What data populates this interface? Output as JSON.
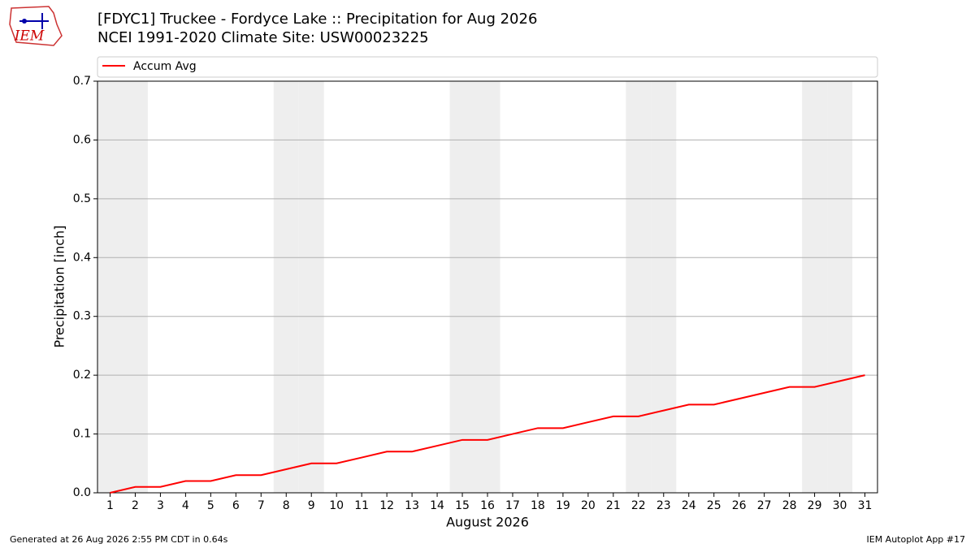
{
  "logo": "IEM",
  "footer": {
    "left": "Generated at 26 Aug 2026 2:55 PM CDT in 0.64s",
    "right": "IEM Autoplot App #17"
  },
  "chart_data": {
    "type": "line",
    "title": "[FDYC1] Truckee - Fordyce Lake :: Precipitation for Aug 2026",
    "subtitle": "NCEI 1991-2020 Climate Site: USW00023225",
    "x_label": "August 2026",
    "y_label": "Precipitation [inch]",
    "x": [
      1,
      2,
      3,
      4,
      5,
      6,
      7,
      8,
      9,
      10,
      11,
      12,
      13,
      14,
      15,
      16,
      17,
      18,
      19,
      20,
      21,
      22,
      23,
      24,
      25,
      26,
      27,
      28,
      29,
      30,
      31
    ],
    "series": [
      {
        "name": "Accum Avg",
        "color": "#ff0000",
        "values": [
          0,
          0.01,
          0.01,
          0.02,
          0.02,
          0.03,
          0.03,
          0.04,
          0.05,
          0.05,
          0.06,
          0.07,
          0.07,
          0.08,
          0.09,
          0.09,
          0.1,
          0.11,
          0.11,
          0.12,
          0.13,
          0.13,
          0.14,
          0.15,
          0.15,
          0.16,
          0.17,
          0.18,
          0.18,
          0.19,
          0.2
        ]
      }
    ],
    "xlim": [
      0.5,
      31.5
    ],
    "xticks": [
      1,
      2,
      3,
      4,
      5,
      6,
      7,
      8,
      9,
      10,
      11,
      12,
      13,
      14,
      15,
      16,
      17,
      18,
      19,
      20,
      21,
      22,
      23,
      24,
      25,
      26,
      27,
      28,
      29,
      30,
      31
    ],
    "ylim": [
      0,
      0.7
    ],
    "yticks": [
      {
        "value": 0,
        "label": "0.0"
      },
      0.1,
      0.2,
      0.3,
      0.4,
      0.5,
      0.6,
      0.7
    ],
    "grid": "y",
    "shaded_days": [
      1,
      2,
      8,
      9,
      15,
      16,
      22,
      23,
      29,
      30
    ],
    "shade_color": "#eeeeee",
    "legend": "top"
  }
}
